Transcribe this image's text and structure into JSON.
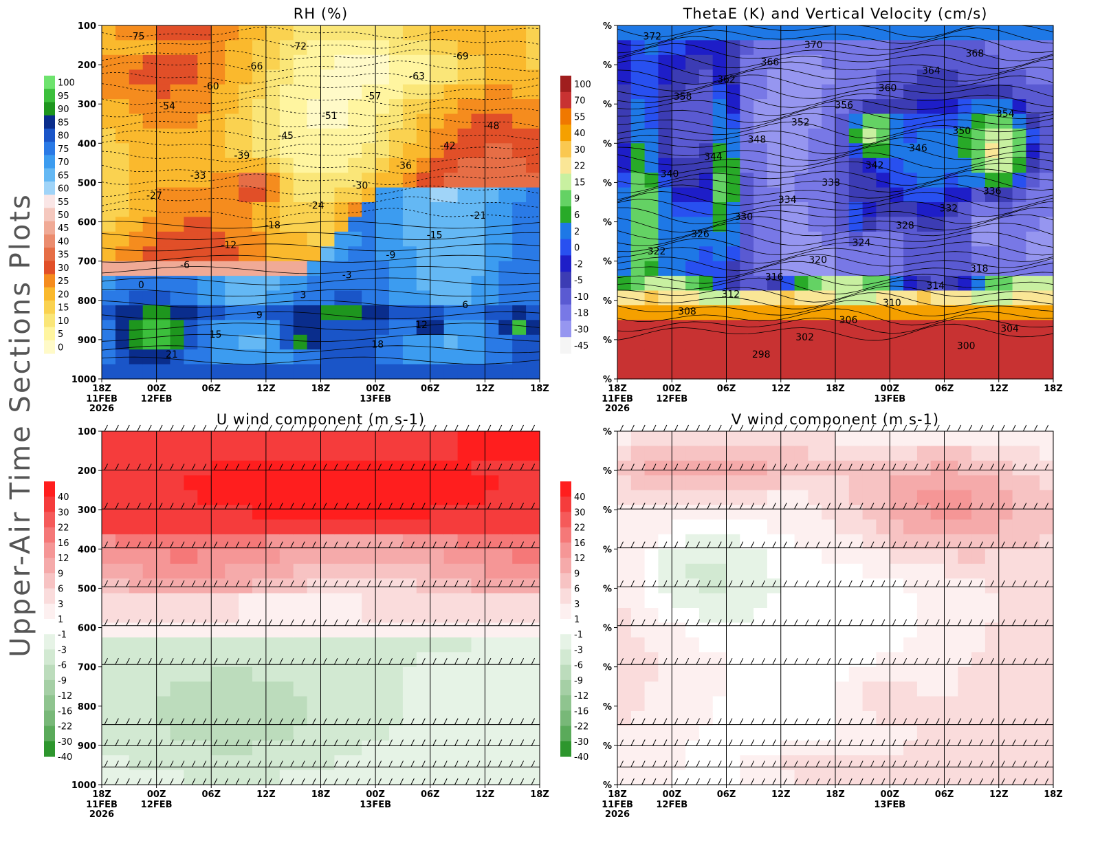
{
  "page_title": "Upper-Air Time Sections Plots",
  "chart_data": [
    {
      "type": "heatmap",
      "title": "RH (%)",
      "ylabel": "",
      "y_ticks": [
        "100",
        "200",
        "300",
        "400",
        "500",
        "600",
        "700",
        "800",
        "900",
        "1000"
      ],
      "x_ticks": [
        "18Z",
        "00Z",
        "06Z",
        "12Z",
        "18Z",
        "00Z",
        "06Z",
        "12Z",
        "18Z"
      ],
      "x_date_labels": [
        {
          "tick": 0,
          "lines": [
            "11FEB",
            "2026"
          ]
        },
        {
          "tick": 1,
          "lines": [
            "12FEB"
          ]
        },
        {
          "tick": 5,
          "lines": [
            "13FEB"
          ]
        }
      ],
      "colorbar": {
        "labels": [
          "100",
          "95",
          "90",
          "85",
          "80",
          "75",
          "70",
          "65",
          "60",
          "55",
          "50",
          "45",
          "40",
          "35",
          "30",
          "25",
          "20",
          "15",
          "10",
          "5",
          "0"
        ],
        "colors": [
          "#6ee36e",
          "#3cbf3c",
          "#1e961e",
          "#0a2d8c",
          "#1a55c8",
          "#2a7ae6",
          "#3c9cf0",
          "#64b8f4",
          "#a0d4f8",
          "#fae6e6",
          "#f5c8be",
          "#f0aa96",
          "#eb8c6e",
          "#e66e46",
          "#e14f28",
          "#f58c1e",
          "#fab92d",
          "#fad250",
          "#fae678",
          "#fff5a0",
          "#fffac8"
        ]
      },
      "contour_labels": [
        "-75",
        "-72",
        "-69",
        "-66",
        "-63",
        "-60",
        "-57",
        "-54",
        "-51",
        "-48",
        "-45",
        "-42",
        "-39",
        "-36",
        "-33",
        "-30",
        "-27",
        "-24",
        "-21",
        "-18",
        "-15",
        "-12",
        "-9",
        "-6",
        "-3",
        "0",
        "3",
        "6",
        "9",
        "12",
        "15",
        "18",
        "21"
      ]
    },
    {
      "type": "heatmap",
      "title": "ThetaE (K) and Vertical Velocity (cm/s)",
      "y_ticks": [
        "%",
        "%",
        "%",
        "%",
        "%",
        "%",
        "%",
        "%",
        "%",
        "%"
      ],
      "x_ticks": [
        "18Z",
        "00Z",
        "06Z",
        "12Z",
        "18Z",
        "00Z",
        "06Z",
        "12Z",
        "18Z"
      ],
      "x_date_labels": [
        {
          "tick": 0,
          "lines": [
            "11FEB",
            "2026"
          ]
        },
        {
          "tick": 1,
          "lines": [
            "12FEB"
          ]
        },
        {
          "tick": 5,
          "lines": [
            "13FEB"
          ]
        }
      ],
      "colorbar": {
        "labels": [
          "100",
          "70",
          "55",
          "40",
          "30",
          "22",
          "15",
          "9",
          "6",
          "2",
          "0",
          "-2",
          "-5",
          "-10",
          "-18",
          "-30",
          "-45"
        ],
        "colors": [
          "#a01e1e",
          "#c83232",
          "#f07800",
          "#f5a000",
          "#fac850",
          "#fae696",
          "#c8f0a0",
          "#64d264",
          "#28aa28",
          "#1e78e6",
          "#2850f0",
          "#1e1ec8",
          "#3c3cb4",
          "#5a5ad2",
          "#7878e6",
          "#9696f0",
          "#f5f5f5"
        ]
      },
      "contour_labels": [
        "372",
        "370",
        "368",
        "366",
        "364",
        "362",
        "360",
        "358",
        "356",
        "354",
        "352",
        "350",
        "348",
        "346",
        "344",
        "342",
        "340",
        "338",
        "336",
        "334",
        "332",
        "330",
        "328",
        "326",
        "324",
        "322",
        "320",
        "318",
        "316",
        "314",
        "312",
        "310",
        "308",
        "306",
        "304",
        "302",
        "300",
        "298"
      ]
    },
    {
      "type": "heatmap",
      "title": "U wind component (m s-1)",
      "y_ticks": [
        "100",
        "200",
        "300",
        "400",
        "500",
        "600",
        "700",
        "800",
        "900",
        "1000"
      ],
      "x_ticks": [
        "18Z",
        "00Z",
        "06Z",
        "12Z",
        "18Z",
        "00Z",
        "06Z",
        "12Z",
        "18Z"
      ],
      "x_date_labels": [
        {
          "tick": 0,
          "lines": [
            "11FEB",
            "2026"
          ]
        },
        {
          "tick": 1,
          "lines": [
            "12FEB"
          ]
        },
        {
          "tick": 5,
          "lines": [
            "13FEB"
          ]
        }
      ],
      "colorbar": {
        "labels": [
          "40",
          "30",
          "22",
          "16",
          "12",
          "9",
          "6",
          "3",
          "1",
          "-1",
          "-3",
          "-6",
          "-9",
          "-12",
          "-16",
          "-22",
          "-30",
          "-40"
        ],
        "colors": [
          "#ff1e1e",
          "#f53c3c",
          "#f55a5a",
          "#f57878",
          "#f59696",
          "#f5aaaa",
          "#f7c3c3",
          "#fadcdc",
          "#fdf0f0",
          "#ffffff",
          "#e6f3e6",
          "#d2e9d2",
          "#bcdcbc",
          "#a5cfa5",
          "#8fc48f",
          "#78b878",
          "#5aaa5a",
          "#2d962d"
        ]
      }
    },
    {
      "type": "heatmap",
      "title": "V wind component (m s-1)",
      "y_ticks": [
        "%",
        "%",
        "%",
        "%",
        "%",
        "%",
        "%",
        "%",
        "%",
        "%"
      ],
      "x_ticks": [
        "18Z",
        "00Z",
        "06Z",
        "12Z",
        "18Z",
        "00Z",
        "06Z",
        "12Z",
        "18Z"
      ],
      "x_date_labels": [
        {
          "tick": 0,
          "lines": [
            "11FEB",
            "2026"
          ]
        },
        {
          "tick": 1,
          "lines": [
            "12FEB"
          ]
        },
        {
          "tick": 5,
          "lines": [
            "13FEB"
          ]
        }
      ],
      "colorbar": {
        "labels": [
          "40",
          "30",
          "22",
          "16",
          "12",
          "9",
          "6",
          "3",
          "1",
          "-1",
          "-3",
          "-6",
          "-9",
          "-12",
          "-16",
          "-22",
          "-30",
          "-40"
        ],
        "colors": [
          "#ff1e1e",
          "#f53c3c",
          "#f55a5a",
          "#f57878",
          "#f59696",
          "#f5aaaa",
          "#f7c3c3",
          "#fadcdc",
          "#fdf0f0",
          "#ffffff",
          "#e6f3e6",
          "#d2e9d2",
          "#bcdcbc",
          "#a5cfa5",
          "#8fc48f",
          "#78b878",
          "#5aaa5a",
          "#2d962d"
        ]
      }
    }
  ]
}
